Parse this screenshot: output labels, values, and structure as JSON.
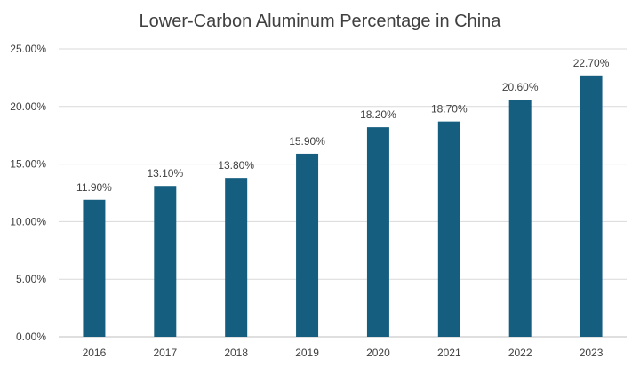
{
  "colors": {
    "bar": "#165e80",
    "gridline": "#d9d9d9",
    "text": "#404040"
  },
  "chart_data": {
    "type": "bar",
    "title": "Lower-Carbon Aluminum Percentage in China",
    "xlabel": "",
    "ylabel": "",
    "categories": [
      "2016",
      "2017",
      "2018",
      "2019",
      "2020",
      "2021",
      "2022",
      "2023"
    ],
    "values": [
      11.9,
      13.1,
      13.8,
      15.9,
      18.2,
      18.7,
      20.6,
      22.7
    ],
    "data_labels": [
      "11.90%",
      "13.10%",
      "13.80%",
      "15.90%",
      "18.20%",
      "18.70%",
      "20.60%",
      "22.70%"
    ],
    "ylim": [
      0,
      25
    ],
    "yticks": [
      0,
      5,
      10,
      15,
      20,
      25
    ],
    "ytick_labels": [
      "0.00%",
      "5.00%",
      "10.00%",
      "15.00%",
      "20.00%",
      "25.00%"
    ],
    "grid": true,
    "legend": "none"
  }
}
